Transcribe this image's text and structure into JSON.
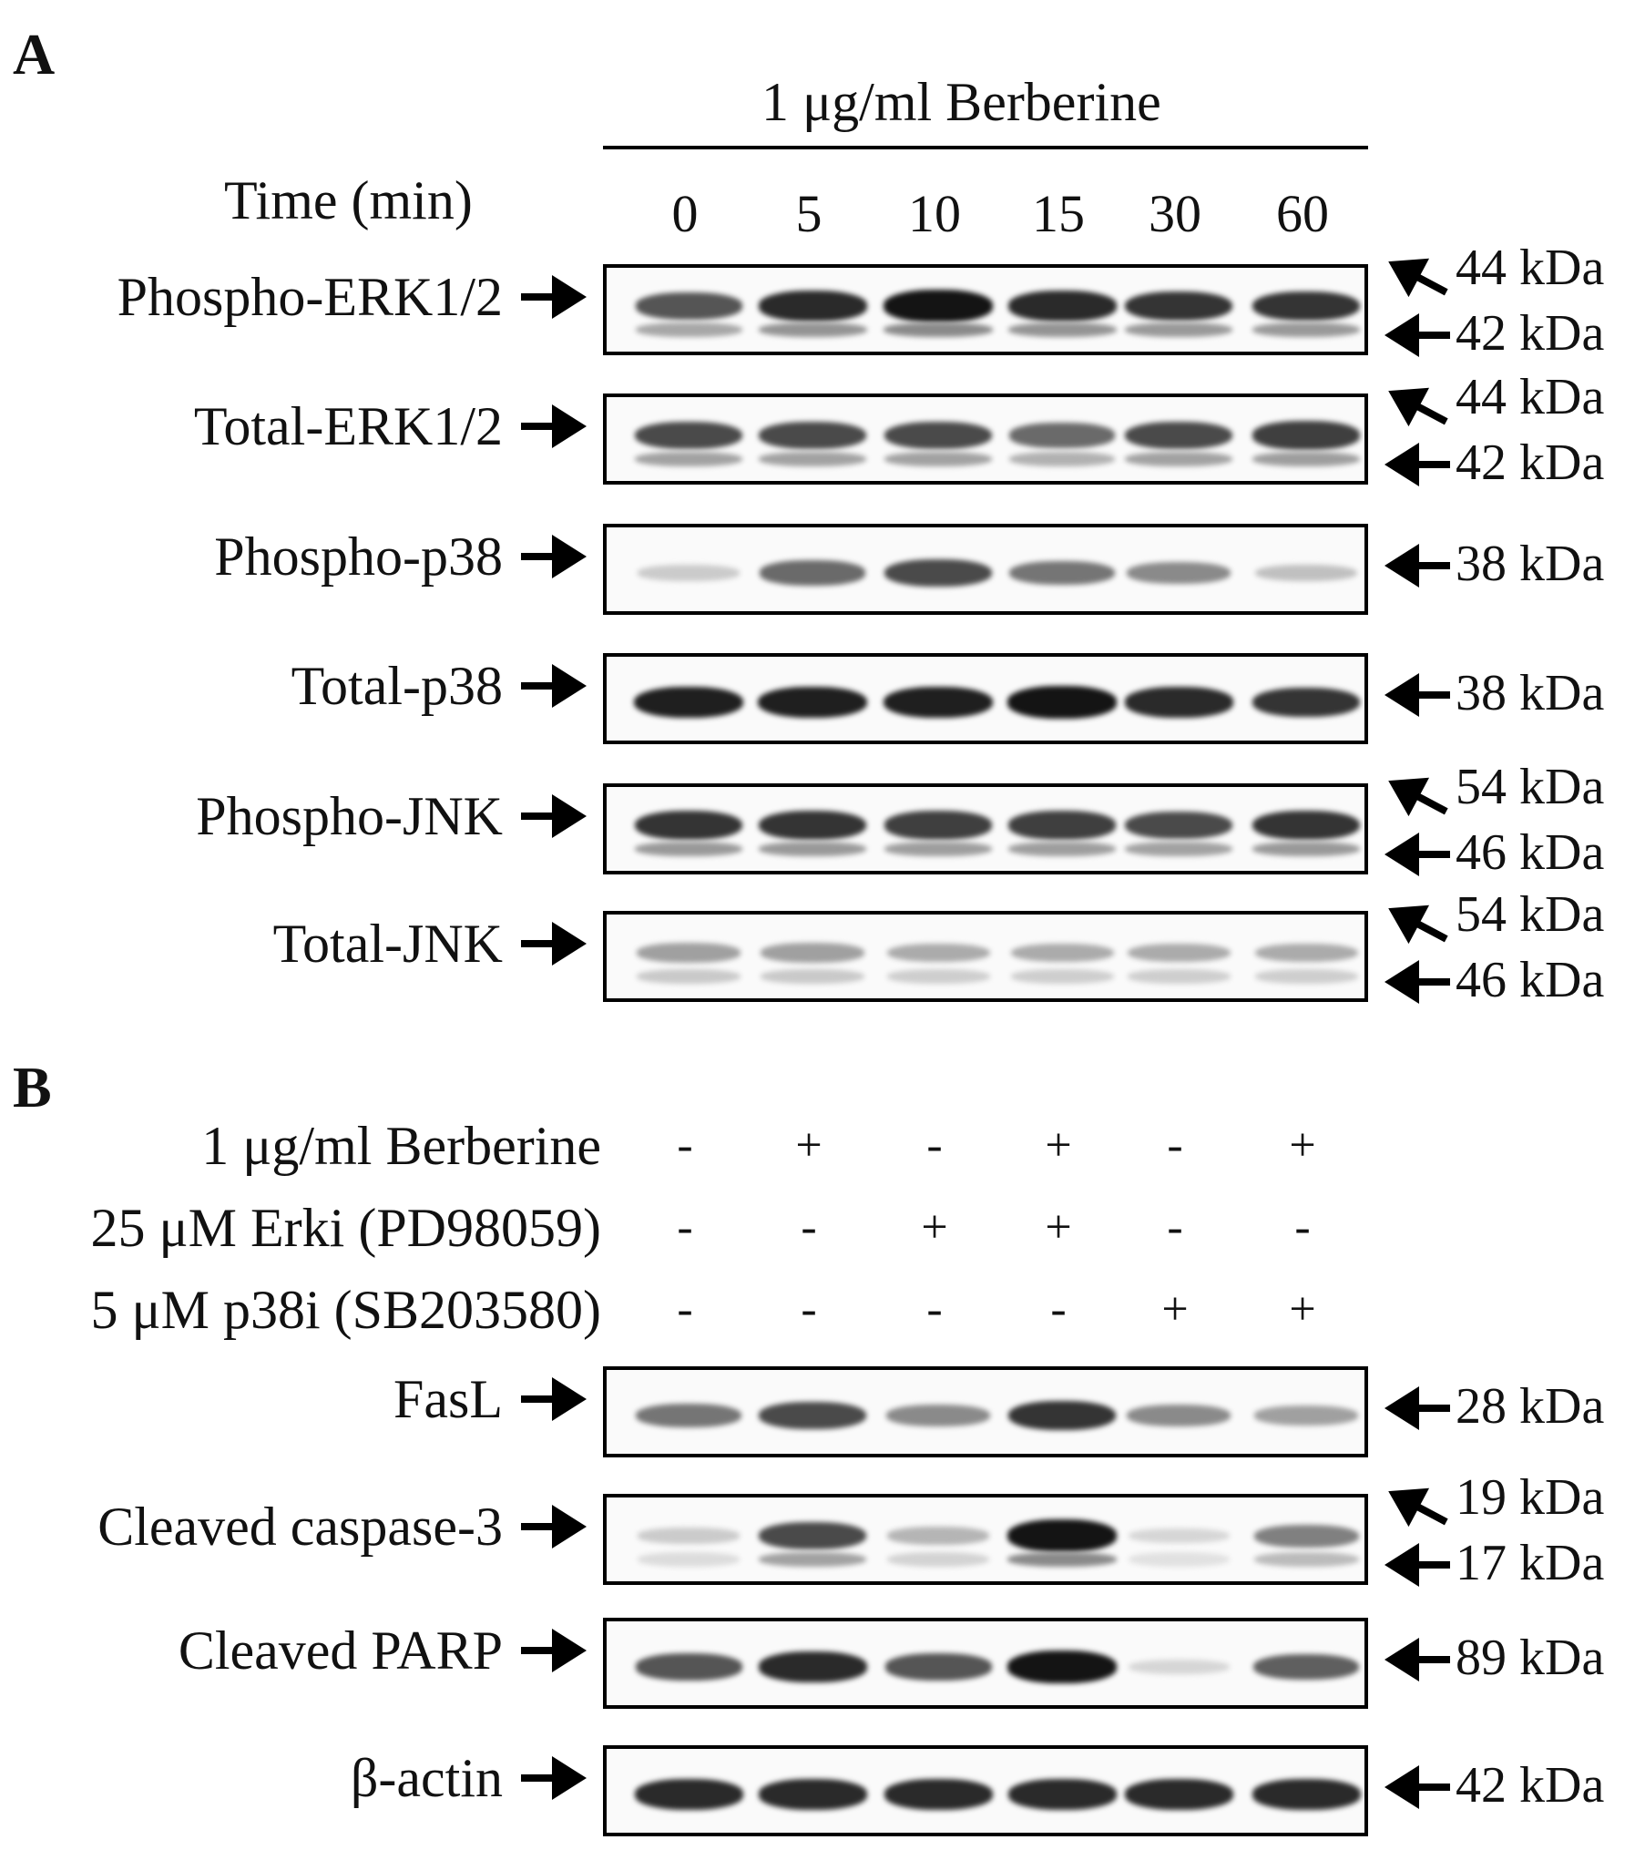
{
  "panel_a": {
    "letter": "A",
    "header": "1 μg/ml Berberine",
    "time_label": "Time (min)",
    "lanes": [
      "0",
      "5",
      "10",
      "15",
      "30",
      "60"
    ],
    "blots": [
      {
        "label": "Phospho-ERK1/2",
        "kda_top": "44 kDa",
        "kda_bottom": "42 kDa",
        "intensity": [
          0.7,
          0.9,
          1.0,
          0.9,
          0.85,
          0.85
        ]
      },
      {
        "label": "Total-ERK1/2",
        "kda_top": "44 kDa",
        "kda_bottom": "42 kDa",
        "intensity": [
          0.75,
          0.75,
          0.75,
          0.6,
          0.75,
          0.8
        ]
      },
      {
        "label": "Phospho-p38",
        "kda_top": "",
        "kda_bottom": "38 kDa",
        "intensity": [
          0.15,
          0.6,
          0.75,
          0.55,
          0.45,
          0.2
        ]
      },
      {
        "label": "Total-p38",
        "kda_top": "",
        "kda_bottom": "38 kDa",
        "intensity": [
          0.95,
          0.95,
          0.95,
          1.0,
          0.9,
          0.85
        ]
      },
      {
        "label": "Phospho-JNK",
        "kda_top": "54 kDa",
        "kda_bottom": "46 kDa",
        "intensity": [
          0.85,
          0.85,
          0.8,
          0.8,
          0.75,
          0.85
        ]
      },
      {
        "label": "Total-JNK",
        "kda_top": "54 kDa",
        "kda_bottom": "46 kDa",
        "intensity": [
          0.35,
          0.35,
          0.3,
          0.3,
          0.3,
          0.3
        ]
      }
    ]
  },
  "panel_b": {
    "letter": "B",
    "treatments": [
      {
        "label": "1 μg/ml Berberine",
        "signs": [
          "-",
          "+",
          "-",
          "+",
          "-",
          "+"
        ]
      },
      {
        "label": "25 μM Erki (PD98059)",
        "signs": [
          "-",
          "-",
          "+",
          "+",
          "-",
          "-"
        ]
      },
      {
        "label": "5 μM p38i (SB203580)",
        "signs": [
          "-",
          "-",
          "-",
          "-",
          "+",
          "+"
        ]
      }
    ],
    "blots": [
      {
        "label": "FasL",
        "kda_top": "",
        "kda_bottom": "28 kDa",
        "intensity": [
          0.55,
          0.75,
          0.45,
          0.85,
          0.45,
          0.35
        ]
      },
      {
        "label": "Cleaved caspase-3",
        "kda_top": "19 kDa",
        "kda_bottom": "17 kDa",
        "intensity": [
          0.15,
          0.75,
          0.25,
          1.0,
          0.1,
          0.5
        ]
      },
      {
        "label": "Cleaved PARP",
        "kda_top": "",
        "kda_bottom": "89 kDa",
        "intensity": [
          0.7,
          0.9,
          0.7,
          1.0,
          0.1,
          0.65
        ]
      },
      {
        "label": "β-actin",
        "kda_top": "",
        "kda_bottom": "42 kDa",
        "intensity": [
          0.9,
          0.9,
          0.9,
          0.9,
          0.9,
          0.9
        ]
      }
    ]
  }
}
